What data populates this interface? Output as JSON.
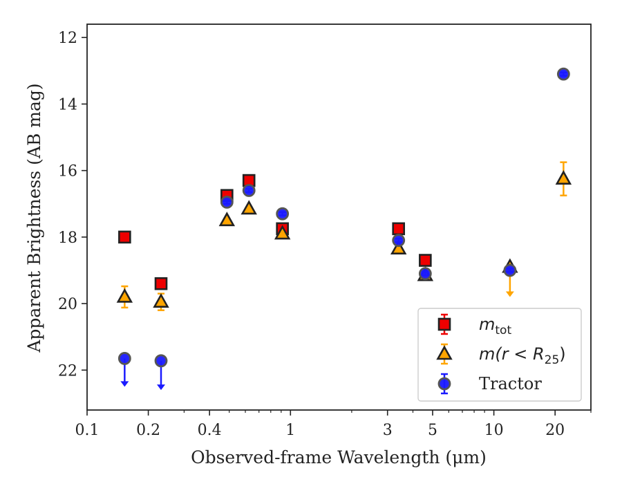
{
  "chart_data": {
    "type": "scatter",
    "xlabel": "Observed-frame Wavelength (μm)",
    "ylabel": "Apparent Brightness (AB mag)",
    "x_scale": "log",
    "xlim": [
      0.1,
      30
    ],
    "ylim": [
      23.2,
      11.6
    ],
    "y_inverted": true,
    "x_ticks": [
      0.1,
      0.2,
      0.4,
      1,
      3,
      5,
      10,
      20
    ],
    "x_tick_labels": [
      "0.1",
      "0.2",
      "0.4",
      "1",
      "3",
      "5",
      "10",
      "20"
    ],
    "y_ticks": [
      12,
      14,
      16,
      18,
      20,
      22
    ],
    "y_tick_labels": [
      "12",
      "14",
      "16",
      "18",
      "20",
      "22"
    ],
    "grid": false,
    "legend_position": "lower-right",
    "series": [
      {
        "name": "m_tot",
        "legend_label": {
          "main": "m",
          "sub": "tot",
          "suffix": ""
        },
        "marker": "square",
        "color": "#ee0000",
        "errorbar_color": "#ee0000",
        "points": [
          {
            "x": 0.153,
            "y": 18.0,
            "err": 0.08
          },
          {
            "x": 0.231,
            "y": 19.4,
            "err": 0.08
          },
          {
            "x": 0.487,
            "y": 16.75,
            "err": 0.05
          },
          {
            "x": 0.625,
            "y": 16.3,
            "err": 0.05
          },
          {
            "x": 0.913,
            "y": 17.75,
            "err": 0.05
          },
          {
            "x": 3.4,
            "y": 17.75,
            "err": 0.05
          },
          {
            "x": 4.6,
            "y": 18.7,
            "err": 0.05
          }
        ]
      },
      {
        "name": "m(r < R25)",
        "legend_label": {
          "main": "m(r < R",
          "sub": "25",
          "suffix": ")"
        },
        "marker": "triangle",
        "color": "#ffa500",
        "errorbar_color": "#ffa500",
        "points": [
          {
            "x": 0.153,
            "y": 19.8,
            "err": 0.32
          },
          {
            "x": 0.231,
            "y": 19.95,
            "err": 0.25
          },
          {
            "x": 0.487,
            "y": 17.5,
            "err": 0.05
          },
          {
            "x": 0.625,
            "y": 17.15,
            "err": 0.05
          },
          {
            "x": 0.913,
            "y": 17.9,
            "err": 0.05
          },
          {
            "x": 3.4,
            "y": 18.35,
            "err": 0.05
          },
          {
            "x": 4.6,
            "y": 19.15,
            "err": 0.05
          },
          {
            "x": 12.0,
            "y": 18.9,
            "err": 0.05
          },
          {
            "x": 22.0,
            "y": 16.25,
            "err": 0.5
          }
        ],
        "upper_limits": [
          {
            "x": 12.0,
            "y": 19.0,
            "to": 19.8
          }
        ]
      },
      {
        "name": "Tractor",
        "legend_label": {
          "main": "Tractor",
          "sub": "",
          "suffix": ""
        },
        "marker": "circle",
        "color": "#1a1aff",
        "errorbar_color": "#1a1aff",
        "points": [
          {
            "x": 0.487,
            "y": 16.95,
            "err": 0.05
          },
          {
            "x": 0.625,
            "y": 16.6,
            "err": 0.05
          },
          {
            "x": 0.913,
            "y": 17.3,
            "err": 0.05
          },
          {
            "x": 3.4,
            "y": 18.1,
            "err": 0.05
          },
          {
            "x": 4.6,
            "y": 19.1,
            "err": 0.05
          },
          {
            "x": 12.0,
            "y": 19.0,
            "err": 0.05
          },
          {
            "x": 22.0,
            "y": 13.1,
            "err": 0.05
          }
        ],
        "upper_limits": [
          {
            "x": 0.153,
            "y": 21.65,
            "to": 22.5
          },
          {
            "x": 0.231,
            "y": 21.72,
            "to": 22.6
          }
        ]
      }
    ]
  }
}
